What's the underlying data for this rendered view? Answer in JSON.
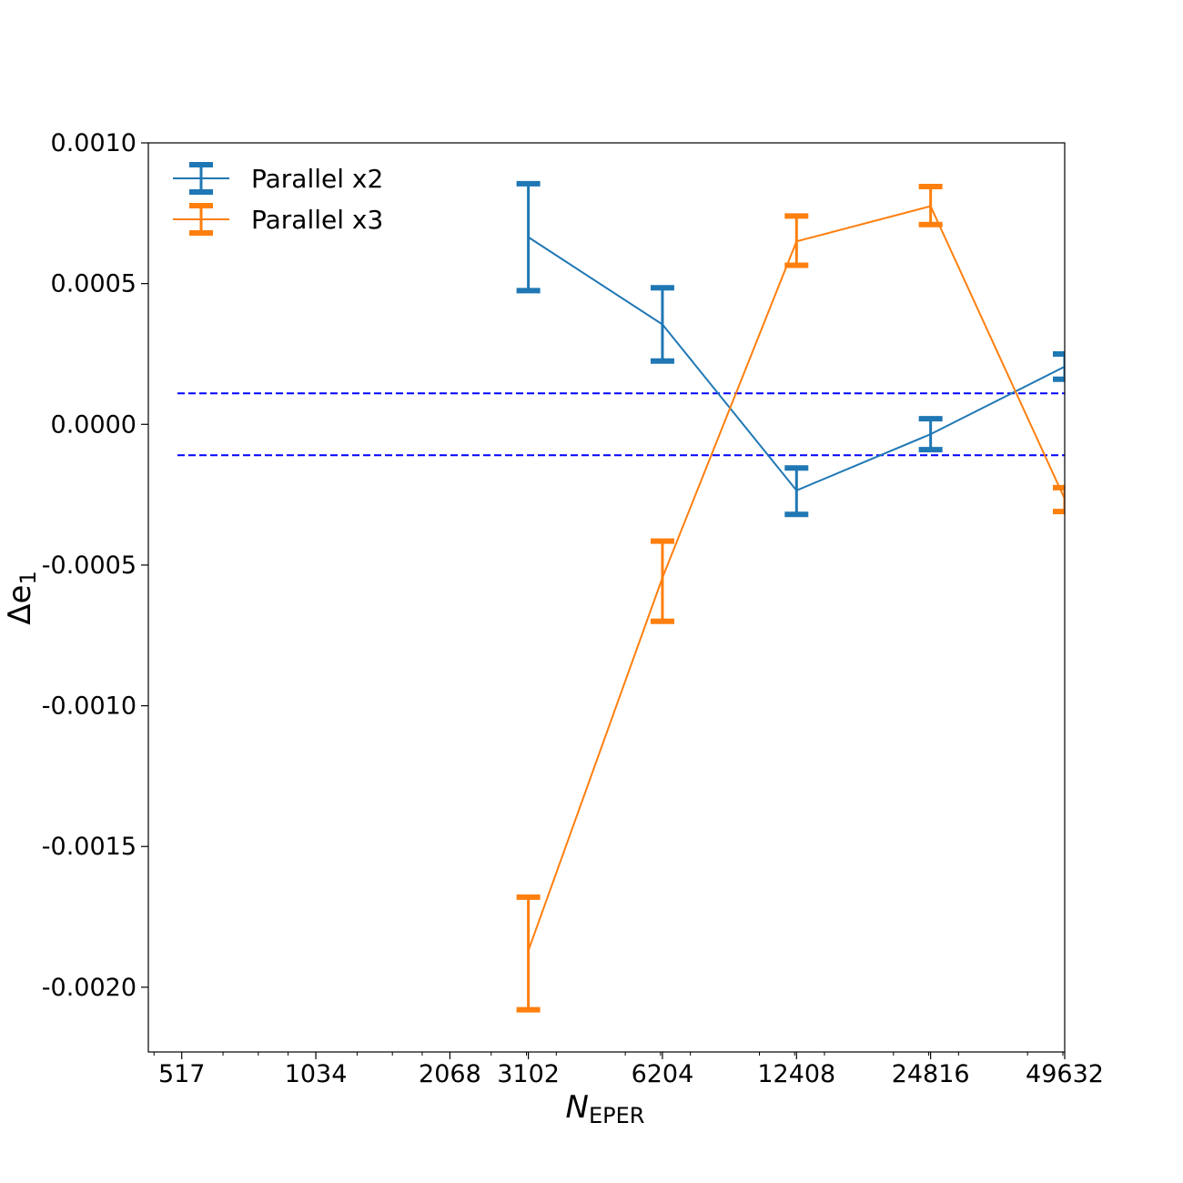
{
  "chart_data": {
    "type": "line",
    "x_scale": "log2",
    "xlabel": "N",
    "xlabel_sub": "EPER",
    "ylabel": "Δe",
    "ylabel_sub": "1",
    "xlim": [
      435,
      49632
    ],
    "ylim": [
      -0.00223,
      0.001
    ],
    "x_ticks": [
      {
        "value": 517,
        "label": "517"
      },
      {
        "value": 1034,
        "label": "1034"
      },
      {
        "value": 2068,
        "label": "2068"
      },
      {
        "value": 3102,
        "label": "3102"
      },
      {
        "value": 6204,
        "label": "6204"
      },
      {
        "value": 12408,
        "label": "12408"
      },
      {
        "value": 24816,
        "label": "24816"
      },
      {
        "value": 49632,
        "label": "49632"
      }
    ],
    "y_ticks": [
      {
        "value": 0.001,
        "label": "0.0010"
      },
      {
        "value": 0.0005,
        "label": "0.0005"
      },
      {
        "value": 0.0,
        "label": "0.0000"
      },
      {
        "value": -0.0005,
        "label": "-0.0005"
      },
      {
        "value": -0.001,
        "label": "-0.0010"
      },
      {
        "value": -0.0015,
        "label": "-0.0015"
      },
      {
        "value": -0.002,
        "label": "-0.0020"
      }
    ],
    "reference_lines": [
      {
        "y": 0.00011,
        "color": "#0000ff",
        "style": "dashed"
      },
      {
        "y": -0.00011,
        "color": "#0000ff",
        "style": "dashed"
      }
    ],
    "legend_position": "top-left",
    "series": [
      {
        "name": "Parallel x2",
        "color": "#1f77b4",
        "x": [
          3102,
          6204,
          12408,
          24816,
          49632
        ],
        "y": [
          0.000665,
          0.000355,
          -0.000235,
          -3.5e-05,
          0.000205
        ],
        "err_low": [
          0.000475,
          0.000225,
          -0.00032,
          -9e-05,
          0.00016
        ],
        "err_high": [
          0.000855,
          0.000485,
          -0.000155,
          2e-05,
          0.00025
        ]
      },
      {
        "name": "Parallel x3",
        "color": "#ff7f0e",
        "x": [
          3102,
          6204,
          12408,
          24816,
          49632
        ],
        "y": [
          -0.00187,
          -0.000545,
          0.00065,
          0.000775,
          -0.000265
        ],
        "err_low": [
          -0.00208,
          -0.0007,
          0.000565,
          0.00071,
          -0.00031
        ],
        "err_high": [
          -0.00168,
          -0.000415,
          0.00074,
          0.000845,
          -0.000225
        ]
      }
    ]
  }
}
